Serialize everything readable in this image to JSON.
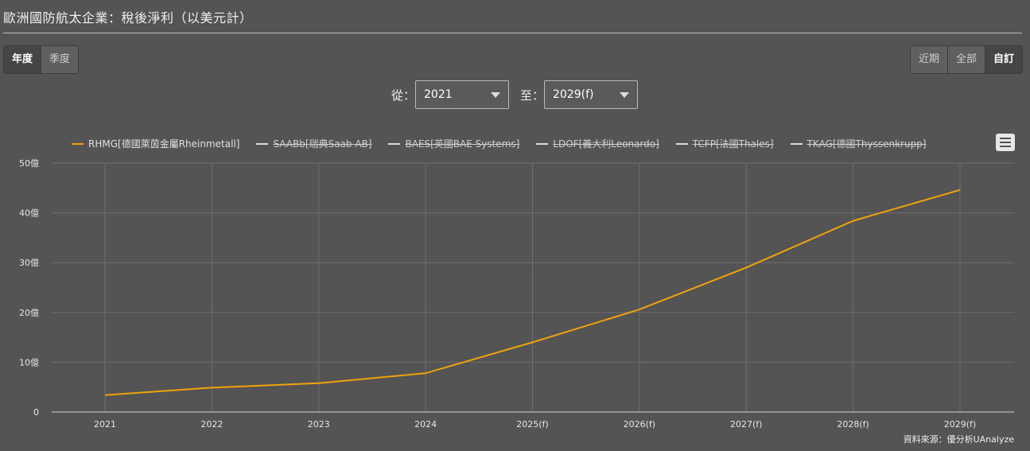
{
  "title": "歐洲國防航太企業：稅後淨利（以美元計）",
  "period_buttons": [
    {
      "label": "年度",
      "active": true
    },
    {
      "label": "季度",
      "active": false
    }
  ],
  "range_buttons": [
    {
      "label": "近期",
      "active": false
    },
    {
      "label": "全部",
      "active": false
    },
    {
      "label": "自訂",
      "active": true
    }
  ],
  "range": {
    "from_label": "從：",
    "from_value": "2021",
    "to_label": "至：",
    "to_value": "2029(f)"
  },
  "legend": [
    {
      "label": "RHMG[德國萊茵金屬Rheinmetall]",
      "color": "#f0a30a",
      "visible": true
    },
    {
      "label": "SAABb[瑞典Saab AB]",
      "color": "#dddddd",
      "visible": false
    },
    {
      "label": "BAES[英國BAE Systems]",
      "color": "#dddddd",
      "visible": false
    },
    {
      "label": "LDOF[義大利Leonardo]",
      "color": "#dddddd",
      "visible": false
    },
    {
      "label": "TCFP[法國Thales]",
      "color": "#dddddd",
      "visible": false
    },
    {
      "label": "TKAG[德國Thyssenkrupp]",
      "color": "#dddddd",
      "visible": false
    }
  ],
  "source": "資料來源：優分析UAnalyze",
  "chart_data": {
    "type": "line",
    "categories": [
      "2021",
      "2022",
      "2023",
      "2024",
      "2025(f)",
      "2026(f)",
      "2027(f)",
      "2028(f)",
      "2029(f)"
    ],
    "series": [
      {
        "name": "RHMG[德國萊茵金屬Rheinmetall]",
        "color": "#f0a30a",
        "values": [
          3.4,
          4.9,
          5.8,
          7.8,
          14.0,
          20.6,
          29.0,
          38.4,
          44.6
        ]
      }
    ],
    "yticks": [
      "0",
      "10億",
      "20億",
      "30億",
      "40億",
      "50億"
    ],
    "ylim": [
      0,
      50
    ],
    "grid": true
  }
}
